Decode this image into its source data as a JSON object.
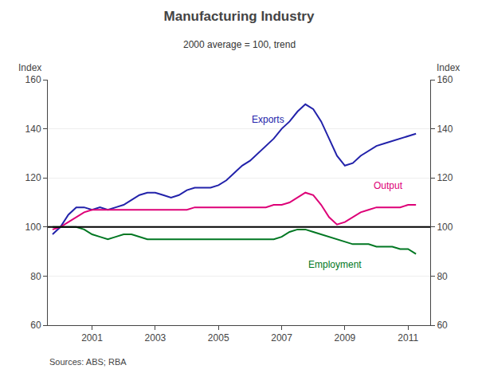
{
  "chart_data": {
    "type": "line",
    "title": "Manufacturing Industry",
    "subtitle": "2000 average = 100, trend",
    "ylabel": "Index",
    "y2label": "Index",
    "source": "Sources: ABS; RBA",
    "xlim": [
      1999.6,
      2011.7
    ],
    "xticks": [
      2001,
      2003,
      2005,
      2007,
      2009,
      2011
    ],
    "ylim": [
      60,
      160
    ],
    "yticks": [
      60,
      80,
      100,
      120,
      140,
      160
    ],
    "y2lim": [
      60,
      160
    ],
    "y2ticks": [
      60,
      80,
      100,
      120,
      140,
      160
    ],
    "grid": true,
    "hline": {
      "y": 100,
      "color": "#000000"
    },
    "x": [
      1999.75,
      2000.0,
      2000.25,
      2000.5,
      2000.75,
      2001.0,
      2001.25,
      2001.5,
      2001.75,
      2002.0,
      2002.25,
      2002.5,
      2002.75,
      2003.0,
      2003.25,
      2003.5,
      2003.75,
      2004.0,
      2004.25,
      2004.5,
      2004.75,
      2005.0,
      2005.25,
      2005.5,
      2005.75,
      2006.0,
      2006.25,
      2006.5,
      2006.75,
      2007.0,
      2007.25,
      2007.5,
      2007.75,
      2008.0,
      2008.25,
      2008.5,
      2008.75,
      2009.0,
      2009.25,
      2009.5,
      2009.75,
      2010.0,
      2010.25,
      2010.5,
      2010.75,
      2011.0,
      2011.25
    ],
    "series": [
      {
        "name": "Exports",
        "color": "#2222aa",
        "values": [
          97,
          100,
          105,
          108,
          108,
          107,
          108,
          107,
          108,
          109,
          111,
          113,
          114,
          114,
          113,
          112,
          113,
          115,
          116,
          116,
          116,
          117,
          119,
          122,
          125,
          127,
          130,
          133,
          136,
          140,
          143,
          147,
          150,
          148,
          143,
          136,
          129,
          125,
          126,
          129,
          131,
          133,
          134,
          135,
          136,
          137,
          138
        ]
      },
      {
        "name": "Output",
        "color": "#dd0077",
        "values": [
          99,
          100,
          102,
          104,
          106,
          107,
          107,
          107,
          107,
          107,
          107,
          107,
          107,
          107,
          107,
          107,
          107,
          107,
          108,
          108,
          108,
          108,
          108,
          108,
          108,
          108,
          108,
          108,
          109,
          109,
          110,
          112,
          114,
          113,
          109,
          104,
          101,
          102,
          104,
          106,
          107,
          108,
          108,
          108,
          108,
          109,
          109
        ]
      },
      {
        "name": "Employment",
        "color": "#007722",
        "values": [
          100,
          100,
          100,
          100,
          99,
          97,
          96,
          95,
          96,
          97,
          97,
          96,
          95,
          95,
          95,
          95,
          95,
          95,
          95,
          95,
          95,
          95,
          95,
          95,
          95,
          95,
          95,
          95,
          95,
          96,
          98,
          99,
          99,
          98,
          97,
          96,
          95,
          94,
          93,
          93,
          93,
          92,
          92,
          92,
          91,
          91,
          89
        ]
      }
    ],
    "annotations": [
      {
        "text": "Exports",
        "x": 2006.0,
        "y": 141,
        "color": "#2222aa"
      },
      {
        "text": "Output",
        "x": 2009.85,
        "y": 114,
        "color": "#dd0077"
      },
      {
        "text": "Employment",
        "x": 2008.7,
        "y": 87.5,
        "color": "#007722"
      }
    ]
  }
}
